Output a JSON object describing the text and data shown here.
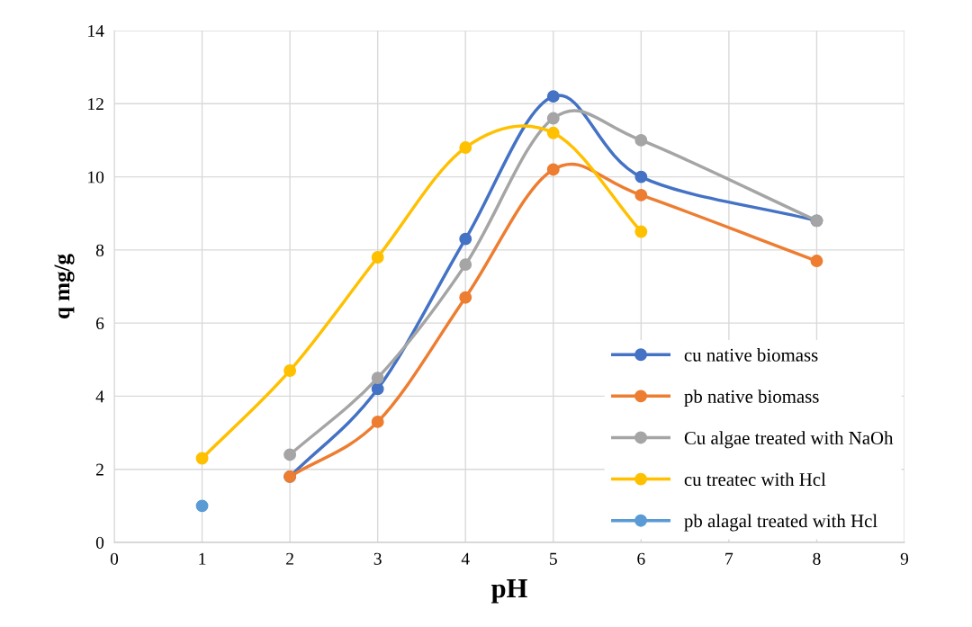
{
  "chart_data": {
    "type": "line",
    "xlabel": "pH",
    "ylabel": "q mg/g",
    "xlim": [
      0,
      9
    ],
    "xticks": [
      0,
      1,
      2,
      3,
      4,
      5,
      6,
      7,
      8,
      9
    ],
    "ylim": [
      0,
      14
    ],
    "yticks": [
      0,
      2,
      4,
      6,
      8,
      10,
      12,
      14
    ],
    "grid": true,
    "legend": "bottom right",
    "marker": "circle",
    "line_style": "solid",
    "series": [
      {
        "name": "cu native biomass",
        "color": "#4472c4",
        "x": [
          2,
          3,
          4,
          5,
          6,
          8
        ],
        "values": [
          1.8,
          4.2,
          8.3,
          12.2,
          10.0,
          8.8
        ]
      },
      {
        "name": "pb native biomass",
        "color": "#ed7d31",
        "x": [
          2,
          3,
          4,
          5,
          6,
          8
        ],
        "values": [
          1.8,
          3.3,
          6.7,
          10.2,
          9.5,
          7.7
        ]
      },
      {
        "name": "Cu algae treated with NaOh",
        "color": "#a5a5a5",
        "x": [
          2,
          3,
          4,
          5,
          6,
          8
        ],
        "values": [
          2.4,
          4.5,
          7.6,
          11.6,
          11.0,
          8.8
        ]
      },
      {
        "name": "cu treatec with Hcl",
        "color": "#ffc000",
        "x": [
          1,
          2,
          3,
          4,
          5,
          6
        ],
        "values": [
          2.3,
          4.7,
          7.8,
          10.8,
          11.2,
          8.5
        ]
      },
      {
        "name": "pb alagal treated with Hcl",
        "color": "#5b9bd5",
        "x": [
          1
        ],
        "values": [
          1.0
        ]
      }
    ]
  }
}
